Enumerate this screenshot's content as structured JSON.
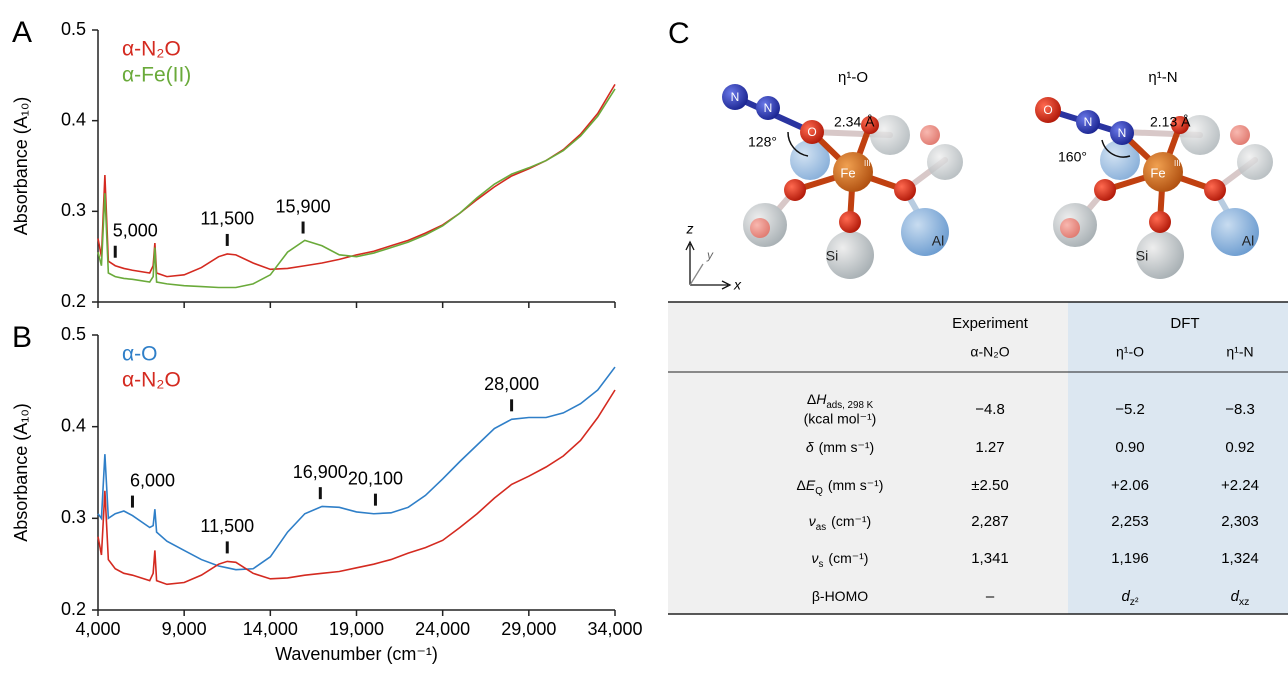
{
  "chart_data": [
    {
      "type": "line",
      "panel_label": "A",
      "ylabel": "Absorbance (A₁₀)",
      "x": [
        4000,
        4200,
        4400,
        4600,
        5000,
        5500,
        6000,
        7000,
        7200,
        7300,
        7400,
        8000,
        9000,
        10000,
        11000,
        11500,
        12000,
        13000,
        14000,
        15000,
        16000,
        17000,
        18000,
        19000,
        20000,
        21000,
        22000,
        23000,
        24000,
        25000,
        26000,
        27000,
        28000,
        29000,
        30000,
        31000,
        32000,
        33000,
        34000
      ],
      "series": [
        {
          "name": "α-N₂O",
          "color": "#d42a20",
          "values": [
            0.27,
            0.25,
            0.34,
            0.245,
            0.24,
            0.237,
            0.235,
            0.232,
            0.24,
            0.265,
            0.232,
            0.228,
            0.23,
            0.238,
            0.25,
            0.253,
            0.252,
            0.243,
            0.236,
            0.237,
            0.24,
            0.243,
            0.247,
            0.252,
            0.256,
            0.262,
            0.268,
            0.276,
            0.285,
            0.298,
            0.313,
            0.327,
            0.339,
            0.347,
            0.356,
            0.368,
            0.385,
            0.408,
            0.44
          ]
        },
        {
          "name": "α-Fe(II)",
          "color": "#6aaa3a",
          "values": [
            0.255,
            0.24,
            0.32,
            0.232,
            0.228,
            0.226,
            0.225,
            0.222,
            0.228,
            0.26,
            0.222,
            0.22,
            0.218,
            0.217,
            0.216,
            0.216,
            0.216,
            0.22,
            0.23,
            0.255,
            0.268,
            0.262,
            0.252,
            0.25,
            0.254,
            0.26,
            0.266,
            0.274,
            0.284,
            0.298,
            0.315,
            0.33,
            0.341,
            0.348,
            0.356,
            0.367,
            0.383,
            0.405,
            0.435
          ]
        }
      ],
      "annotations": [
        {
          "x": 5000,
          "text": "5,000"
        },
        {
          "x": 11500,
          "text": "11,500"
        },
        {
          "x": 15900,
          "text": "15,900"
        }
      ],
      "xlim": [
        4000,
        34000
      ],
      "xticks": [
        4000,
        9000,
        14000,
        19000,
        24000,
        29000,
        34000
      ],
      "ylim": [
        0.2,
        0.5
      ],
      "yticks": [
        0.2,
        0.3,
        0.4,
        0.5
      ]
    },
    {
      "type": "line",
      "panel_label": "B",
      "ylabel": "Absorbance (A₁₀)",
      "xlabel": "Wavenumber (cm⁻¹)",
      "x": [
        4000,
        4200,
        4400,
        4600,
        5000,
        5500,
        6000,
        7000,
        7200,
        7300,
        7400,
        8000,
        9000,
        10000,
        11000,
        11500,
        12000,
        13000,
        14000,
        15000,
        16000,
        17000,
        18000,
        19000,
        20000,
        21000,
        22000,
        23000,
        24000,
        25000,
        26000,
        27000,
        28000,
        29000,
        30000,
        31000,
        32000,
        33000,
        34000
      ],
      "series": [
        {
          "name": "α-O",
          "color": "#2f7fc8",
          "values": [
            0.305,
            0.3,
            0.37,
            0.3,
            0.305,
            0.308,
            0.303,
            0.29,
            0.292,
            0.31,
            0.285,
            0.275,
            0.265,
            0.255,
            0.248,
            0.246,
            0.244,
            0.245,
            0.258,
            0.285,
            0.305,
            0.313,
            0.312,
            0.307,
            0.305,
            0.306,
            0.312,
            0.325,
            0.343,
            0.362,
            0.38,
            0.398,
            0.408,
            0.41,
            0.41,
            0.415,
            0.425,
            0.44,
            0.465
          ]
        },
        {
          "name": "α-N₂O",
          "color": "#d42a20",
          "values": [
            0.28,
            0.26,
            0.33,
            0.255,
            0.245,
            0.24,
            0.238,
            0.232,
            0.24,
            0.265,
            0.232,
            0.228,
            0.23,
            0.238,
            0.25,
            0.253,
            0.252,
            0.24,
            0.234,
            0.235,
            0.238,
            0.24,
            0.242,
            0.246,
            0.25,
            0.255,
            0.262,
            0.268,
            0.276,
            0.29,
            0.305,
            0.322,
            0.337,
            0.346,
            0.356,
            0.368,
            0.385,
            0.41,
            0.44
          ]
        }
      ],
      "annotations": [
        {
          "x": 6000,
          "text": "6,000"
        },
        {
          "x": 11500,
          "text": "11,500"
        },
        {
          "x": 16900,
          "text": "16,900"
        },
        {
          "x": 20100,
          "text": "20,100"
        },
        {
          "x": 28000,
          "text": "28,000"
        }
      ],
      "xlim": [
        4000,
        34000
      ],
      "xticks": [
        {
          "value": 4000,
          "label": "4,000"
        },
        {
          "value": 9000,
          "label": "9,000"
        },
        {
          "value": 14000,
          "label": "14,000"
        },
        {
          "value": 19000,
          "label": "19,000"
        },
        {
          "value": 24000,
          "label": "24,000"
        },
        {
          "value": 29000,
          "label": "29,000"
        },
        {
          "value": 34000,
          "label": "34,000"
        }
      ],
      "ylim": [
        0.2,
        0.5
      ],
      "yticks": [
        0.2,
        0.3,
        0.4,
        0.5
      ]
    }
  ],
  "panel_c": {
    "label": "C",
    "structures": [
      {
        "title": "η¹-O",
        "atom_1": "N",
        "atom_2": "N",
        "atom_3": "O",
        "fe": "Fe",
        "fe_ox": "III",
        "si": "Si",
        "al": "Al",
        "distance": "2.34 Å",
        "angle": "128°"
      },
      {
        "title": "η¹-N",
        "atom_1": "O",
        "atom_2": "N",
        "atom_3": "N",
        "fe": "Fe",
        "fe_ox": "III",
        "si": "Si",
        "al": "Al",
        "distance": "2.13 Å",
        "angle": "160°"
      }
    ],
    "axes": {
      "z": "z",
      "y": "y",
      "x": "x"
    },
    "table": {
      "group_headers": {
        "experiment": "Experiment",
        "dft": "DFT"
      },
      "columns": [
        "α-N₂O",
        "η¹-O",
        "η¹-N"
      ],
      "rows": [
        {
          "label": {
            "prefix": "Δ",
            "symbol": "H",
            "sub": "ads, 298 K",
            "unit": "(kcal mol⁻¹)"
          },
          "cells": [
            "−4.8",
            "−5.2",
            "−8.3"
          ]
        },
        {
          "label": {
            "symbol": "δ",
            "unit": "(mm s⁻¹)"
          },
          "cells": [
            "1.27",
            "0.90",
            "0.92"
          ]
        },
        {
          "label": {
            "prefix": "Δ",
            "symbol": "E",
            "sub": "Q",
            "unit": "(mm s⁻¹)"
          },
          "cells": [
            "±2.50",
            "+2.06",
            "+2.24"
          ]
        },
        {
          "label": {
            "symbol": "ν",
            "sub": "as",
            "unit": "(cm⁻¹)"
          },
          "cells": [
            "2,287",
            "2,253",
            "2,303"
          ]
        },
        {
          "label": {
            "symbol": "ν",
            "sub": "s",
            "unit": "(cm⁻¹)"
          },
          "cells": [
            "1,341",
            "1,196",
            "1,324"
          ]
        },
        {
          "label": {
            "prefix": "β-HOMO"
          },
          "cells": [
            "–",
            {
              "symbol": "d",
              "sub": "z²"
            },
            {
              "symbol": "d",
              "sub": "xz"
            }
          ]
        }
      ]
    }
  }
}
